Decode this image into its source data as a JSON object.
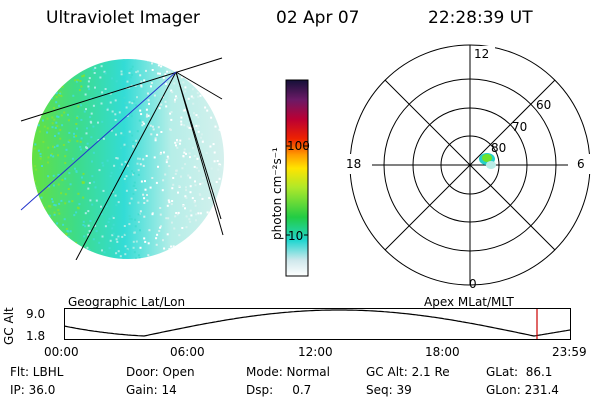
{
  "header": {
    "instrument": "Ultraviolet Imager",
    "date": "02 Apr 07",
    "time": "22:28:39 UT"
  },
  "colorbar": {
    "label": "photon cm⁻²s⁻¹",
    "ticks": [
      "100",
      "10"
    ],
    "scale": "log"
  },
  "polar": {
    "mlt_labels": [
      "12",
      "18",
      "6",
      "0"
    ],
    "lat_labels": [
      "60",
      "70",
      "80"
    ]
  },
  "orbit": {
    "left_caption": "Geographic Lat/Lon",
    "right_caption": "Apex MLat/MLT",
    "ylabel": "GC Alt",
    "ytick_top": "9.0",
    "ytick_bottom": "1.8",
    "xticks": [
      "00:00",
      "06:00",
      "12:00",
      "18:00",
      "23:59"
    ],
    "marker_color": "#cc0000"
  },
  "status": {
    "filter": "Flt: LBHL",
    "door": "Door: Open",
    "mode": "Mode: Normal",
    "gc_alt": "GC Alt: 2.1 Re",
    "glat": "GLat:  86.1",
    "ip": "IP: 36.0",
    "gain": "Gain: 14",
    "dsp": "Dsp:     0.7",
    "seq": "Seq: 39",
    "glon": "GLon: 231.4"
  }
}
